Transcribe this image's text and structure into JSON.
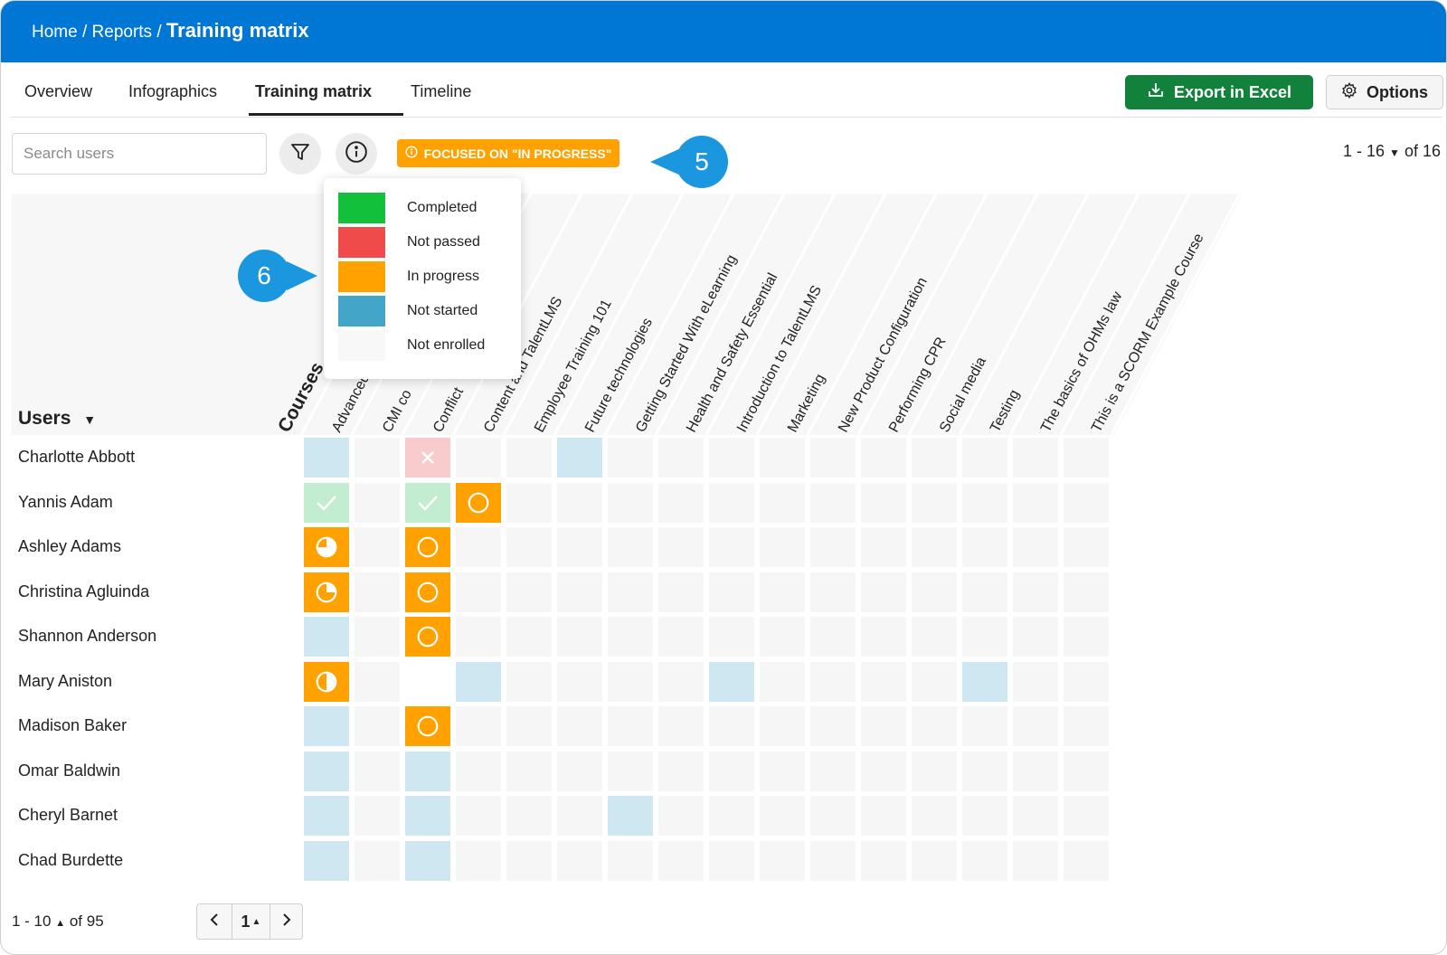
{
  "breadcrumb": {
    "home": "Home",
    "reports": "Reports",
    "current": "Training matrix",
    "sep": "/"
  },
  "tabs": [
    {
      "label": "Overview"
    },
    {
      "label": "Infographics"
    },
    {
      "label": "Training matrix",
      "active": true
    },
    {
      "label": "Timeline"
    }
  ],
  "actions": {
    "export_label": "Export in Excel",
    "options_label": "Options"
  },
  "search": {
    "placeholder": "Search users",
    "value": ""
  },
  "focus_badge": "FOCUSED ON \"IN PROGRESS\"",
  "callouts": {
    "five": "5",
    "six": "6"
  },
  "pager_top": {
    "range": "1 - 16",
    "of": "of 16"
  },
  "legend": [
    {
      "label": "Completed",
      "color": "#12c03c"
    },
    {
      "label": "Not passed",
      "color": "#ef4b4b"
    },
    {
      "label": "In progress",
      "color": "#ffa200"
    },
    {
      "label": "Not started",
      "color": "#43a6c9"
    },
    {
      "label": "Not enrolled",
      "color": "#f8f8f8"
    }
  ],
  "matrix": {
    "users_label": "Users",
    "courses_label": "Courses",
    "courses": [
      "Advanced",
      "CMI co",
      "Conflict",
      "Content and TalentLMS",
      "Employee Training 101",
      "Future technologies",
      "Getting Started With eLearning",
      "Health and Safety Essential",
      "Introduction to TalentLMS",
      "Marketing",
      "New Product Configuration",
      "Performing CPR",
      "Social media",
      "Testing",
      "The basics of OHMs law",
      "This is a SCORM Example Course"
    ],
    "users": [
      "Charlotte Abbott",
      "Yannis Adam",
      "Ashley Adams",
      "Christina Agluinda",
      "Shannon Anderson",
      "Mary Aniston",
      "Madison Baker",
      "Omar Baldwin",
      "Cheryl Barnet",
      "Chad Burdette"
    ],
    "status_colors": {
      "ns": "#cfe7f0",
      "ne": "#f6f6f6",
      "np": "#f8cccc",
      "cm": "#c2edd0",
      "ip": "#ffa200",
      "blank": "#ffffff"
    },
    "rows": [
      [
        "ns",
        "ne",
        "np",
        "ne",
        "ne",
        "ns",
        "ne",
        "ne",
        "ne",
        "ne",
        "ne",
        "ne",
        "ne",
        "ne",
        "ne",
        "ne"
      ],
      [
        "cm",
        "ne",
        "cm",
        "ip0",
        "ne",
        "ne",
        "ne",
        "ne",
        "ne",
        "ne",
        "ne",
        "ne",
        "ne",
        "ne",
        "ne",
        "ne"
      ],
      [
        "ip75",
        "ne",
        "ip0",
        "ne",
        "ne",
        "ne",
        "ne",
        "ne",
        "ne",
        "ne",
        "ne",
        "ne",
        "ne",
        "ne",
        "ne",
        "ne"
      ],
      [
        "ip25",
        "ne",
        "ip0",
        "ne",
        "ne",
        "ne",
        "ne",
        "ne",
        "ne",
        "ne",
        "ne",
        "ne",
        "ne",
        "ne",
        "ne",
        "ne"
      ],
      [
        "ns",
        "ne",
        "ip0",
        "ne",
        "ne",
        "ne",
        "ne",
        "ne",
        "ne",
        "ne",
        "ne",
        "ne",
        "ne",
        "ne",
        "ne",
        "ne"
      ],
      [
        "ip50",
        "ne",
        "blank",
        "ns",
        "ne",
        "ne",
        "ne",
        "ne",
        "ns",
        "ne",
        "ne",
        "ne",
        "ne",
        "ns",
        "ne",
        "ne"
      ],
      [
        "ns",
        "ne",
        "ip0",
        "ne",
        "ne",
        "ne",
        "ne",
        "ne",
        "ne",
        "ne",
        "ne",
        "ne",
        "ne",
        "ne",
        "ne",
        "ne"
      ],
      [
        "ns",
        "ne",
        "ns",
        "ne",
        "ne",
        "ne",
        "ne",
        "ne",
        "ne",
        "ne",
        "ne",
        "ne",
        "ne",
        "ne",
        "ne",
        "ne"
      ],
      [
        "ns",
        "ne",
        "ns",
        "ne",
        "ne",
        "ne",
        "ns",
        "ne",
        "ne",
        "ne",
        "ne",
        "ne",
        "ne",
        "ne",
        "ne",
        "ne"
      ],
      [
        "ns",
        "ne",
        "ns",
        "ne",
        "ne",
        "ne",
        "ne",
        "ne",
        "ne",
        "ne",
        "ne",
        "ne",
        "ne",
        "ne",
        "ne",
        "ne"
      ]
    ]
  },
  "pager_bottom": {
    "range": "1 - 10",
    "of": "of 95",
    "page": "1"
  }
}
